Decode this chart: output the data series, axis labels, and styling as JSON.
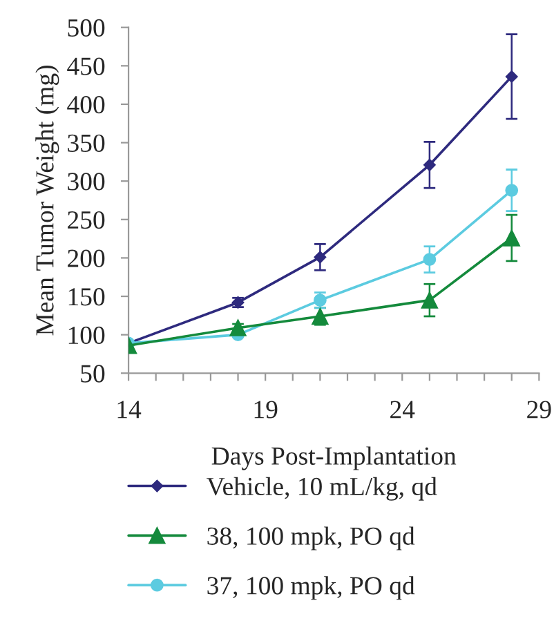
{
  "chart_data": {
    "type": "line",
    "xlabel": "Days Post-Implantation",
    "ylabel": "Mean Tumor Weight (mg)",
    "x": [
      14,
      18,
      21,
      25,
      28
    ],
    "series": [
      {
        "name": "Vehicle, 10 mL/kg, qd",
        "color": "#2e2a7e",
        "marker": "diamond",
        "values": [
          89,
          142,
          201,
          321,
          436
        ],
        "errors": [
          null,
          6,
          17,
          30,
          55
        ]
      },
      {
        "name": "38, 100 mpk, PO qd",
        "color": "#148a3c",
        "marker": "triangle",
        "values": [
          86,
          109,
          124,
          145,
          226
        ],
        "errors": [
          null,
          5,
          11,
          21,
          30
        ]
      },
      {
        "name": "37, 100 mpk, PO qd",
        "color": "#5ccbe0",
        "marker": "circle",
        "values": [
          89,
          100,
          145,
          198,
          288
        ],
        "errors": [
          null,
          3,
          10,
          17,
          27
        ]
      }
    ],
    "xlim": [
      14,
      29
    ],
    "xticks": [
      14,
      {
        "value": 15,
        "label": null
      },
      {
        "value": 16,
        "label": null
      },
      {
        "value": 17,
        "label": null
      },
      {
        "value": 18,
        "label": null
      },
      19,
      {
        "value": 20,
        "label": null
      },
      {
        "value": 21,
        "label": null
      },
      {
        "value": 22,
        "label": null
      },
      {
        "value": 23,
        "label": null
      },
      24,
      {
        "value": 25,
        "label": null
      },
      {
        "value": 26,
        "label": null
      },
      {
        "value": 27,
        "label": null
      },
      {
        "value": 28,
        "label": null
      },
      29
    ],
    "ylim": [
      50,
      500
    ],
    "yticks": [
      50,
      100,
      150,
      200,
      250,
      300,
      350,
      400,
      450,
      500
    ],
    "grid": false,
    "legend": "bottom",
    "line_style": "solid"
  }
}
